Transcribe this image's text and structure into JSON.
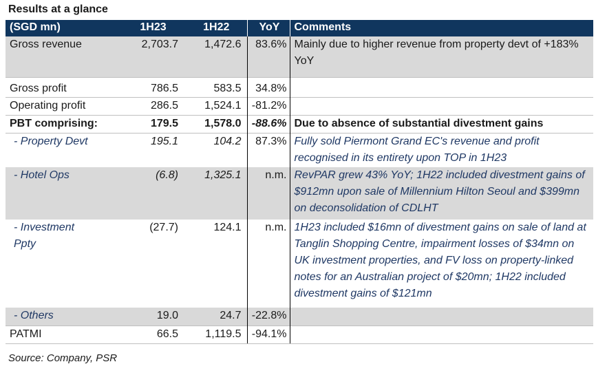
{
  "title": "Results at a glance",
  "header": {
    "label": "(SGD mn)",
    "col1": "1H23",
    "col2": "1H22",
    "col3": "YoY",
    "col4": "Comments"
  },
  "rows": [
    {
      "label": "Gross revenue",
      "v1": "2,703.7",
      "v2": "1,472.6",
      "yoy": "83.6%",
      "comment": "Mainly due to higher revenue from property devt of +183% YoY"
    },
    {
      "label": "Gross profit",
      "v1": "786.5",
      "v2": "583.5",
      "yoy": "34.8%",
      "comment": ""
    },
    {
      "label": "Operating profit",
      "v1": "286.5",
      "v2": "1,524.1",
      "yoy": "-81.2%",
      "comment": ""
    },
    {
      "label": "PBT comprising:",
      "v1": "179.5",
      "v2": "1,578.0",
      "yoy": "-88.6%",
      "comment": "Due to absence of substantial divestment gains"
    },
    {
      "label": "- Property Devt",
      "v1": "195.1",
      "v2": "104.2",
      "yoy": "87.3%",
      "comment": "Fully sold Piermont Grand EC's revenue and profit recognised in its entirety upon TOP in 1H23"
    },
    {
      "label": "- Hotel Ops",
      "v1": "(6.8)",
      "v2": "1,325.1",
      "yoy": "n.m.",
      "comment": "RevPAR grew 43% YoY; 1H22 included divestment gains of $912mn upon sale of Millennium Hilton Seoul and $399mn on deconsolidation of CDLHT"
    },
    {
      "label": "- Investment Ppty",
      "v1": "(27.7)",
      "v2": "124.1",
      "yoy": "n.m.",
      "comment": "1H23 included $16mn of divestment gains on sale of land at Tanglin Shopping Centre, impairment losses of $34mn on UK investment properties, and FV loss on property-linked notes for an Australian project of $20mn; 1H22 included divestment gains of $121mn"
    },
    {
      "label": "- Others",
      "v1": "19.0",
      "v2": "24.7",
      "yoy": "-22.8%",
      "comment": ""
    },
    {
      "label": "PATMI",
      "v1": "66.5",
      "v2": "1,119.5",
      "yoy": "-94.1%",
      "comment": ""
    }
  ],
  "source": "Source: Company, PSR",
  "colors": {
    "header_bg": "#10365e",
    "shade": "#d9d9d9",
    "accent_text": "#1f3864"
  }
}
